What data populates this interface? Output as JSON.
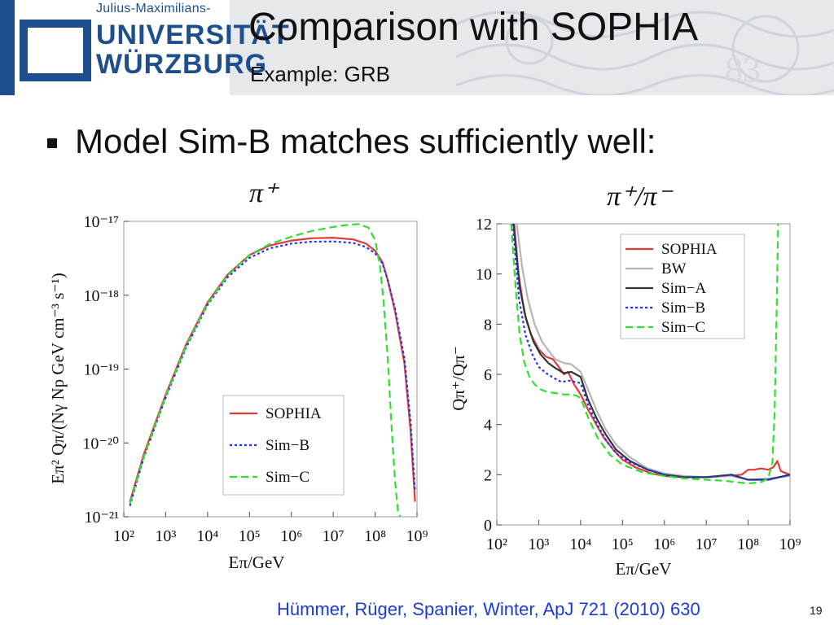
{
  "header": {
    "logo_small": "Julius-Maximilians-",
    "logo_line1": "UNIVERSITÄT",
    "logo_line2": "WÜRZBURG",
    "title": "Comparison with SOPHIA",
    "subtitle": "Example: GRB",
    "pattern_digits": "83"
  },
  "bullet": "Model Sim-B matches sufficiently well:",
  "citation": "Hümmer, Rüger, Spanier,  Winter,  ApJ 721 (2010) 630",
  "page_number": "19",
  "colors": {
    "sophia": "#e23a3a",
    "bw": "#b5b5b5",
    "simA": "#333333",
    "simB": "#2233ee",
    "simC": "#33dd33",
    "uni_blue": "#1e4f8c"
  },
  "chart_data": [
    {
      "type": "line",
      "label": "π⁺",
      "xlabel": "Eπ/GeV",
      "ylabel": "Eπ² Qπ/(Nγ Np GeV cm⁻³ s⁻¹)",
      "x_scale": "log",
      "y_scale": "log",
      "xlim": [
        100,
        1000000000
      ],
      "ylim": [
        1e-21,
        1e-17
      ],
      "x_ticks": [
        "10²",
        "10³",
        "10⁴",
        "10⁵",
        "10⁶",
        "10⁷",
        "10⁸",
        "10⁹"
      ],
      "y_ticks": [
        "10⁻¹⁷",
        "10⁻¹⁸",
        "10⁻¹⁹",
        "10⁻²⁰",
        "10⁻²¹"
      ],
      "legend_position": "bottom-right",
      "series": [
        {
          "name": "SOPHIA",
          "color": "#e23a3a",
          "dash": "solid",
          "x": [
            140,
            300,
            1000,
            3000,
            10000,
            30000,
            100000,
            300000,
            1000000,
            3000000,
            10000000,
            30000000,
            60000000,
            100000000,
            150000000,
            200000000,
            300000000,
            500000000,
            700000000,
            900000000
          ],
          "y": [
            1.6e-21,
            7e-21,
            4.5e-20,
            2.1e-19,
            8e-19,
            1.9e-18,
            3.5e-18,
            4.7e-18,
            5.5e-18,
            5.9e-18,
            6e-18,
            5.7e-18,
            5e-18,
            4e-18,
            2.8e-18,
            1.6e-18,
            6e-19,
            1.2e-19,
            1.5e-20,
            1.6e-21
          ]
        },
        {
          "name": "Sim−B",
          "color": "#2233ee",
          "dash": "dot",
          "x": [
            140,
            300,
            1000,
            3000,
            10000,
            30000,
            100000,
            300000,
            1000000,
            3000000,
            10000000,
            30000000,
            60000000,
            100000000,
            150000000,
            200000000,
            300000000,
            500000000,
            700000000,
            900000000
          ],
          "y": [
            1.4e-21,
            6.3e-21,
            4.1e-20,
            1.9e-19,
            7.4e-19,
            1.75e-18,
            3.2e-18,
            4.3e-18,
            5e-18,
            5.3e-18,
            5.35e-18,
            5.1e-18,
            4.5e-18,
            3.7e-18,
            2.7e-18,
            1.6e-18,
            6.5e-19,
            1.4e-19,
            2e-20,
            2.2e-21
          ]
        },
        {
          "name": "Sim−C",
          "color": "#33dd33",
          "dash": "dash",
          "x": [
            140,
            300,
            1000,
            3000,
            10000,
            30000,
            100000,
            300000,
            1000000,
            3000000,
            10000000,
            20000000,
            40000000,
            70000000,
            100000000,
            130000000,
            160000000,
            200000000,
            250000000,
            300000000,
            350000000,
            400000000
          ],
          "y": [
            1.5e-21,
            6.5e-21,
            4.3e-20,
            2e-19,
            7.7e-19,
            1.85e-18,
            3.5e-18,
            4.9e-18,
            6.2e-18,
            7.4e-18,
            8.4e-18,
            8.9e-18,
            9.2e-18,
            8.2e-18,
            5.6e-18,
            2.6e-18,
            8e-19,
            1.4e-19,
            1.5e-20,
            3e-21,
            1.2e-21,
            9e-22
          ]
        }
      ]
    },
    {
      "type": "line",
      "label": "π⁺/π⁻",
      "xlabel": "Eπ/GeV",
      "ylabel": "Qπ⁺/Qπ⁻",
      "x_scale": "log",
      "y_scale": "linear",
      "xlim": [
        100,
        1000000000
      ],
      "ylim": [
        0,
        12
      ],
      "x_ticks": [
        "10²",
        "10³",
        "10⁴",
        "10⁵",
        "10⁶",
        "10⁷",
        "10⁸",
        "10⁹"
      ],
      "y_ticks": [
        "0",
        "2",
        "4",
        "6",
        "8",
        "10",
        "12"
      ],
      "legend_position": "top-right",
      "series": [
        {
          "name": "SOPHIA",
          "color": "#e23a3a",
          "dash": "solid",
          "x": [
            260,
            330,
            450,
            650,
            1000,
            1500,
            2200,
            3000,
            4000,
            5000,
            7000,
            10000,
            15000,
            22000,
            35000,
            60000,
            100000,
            200000,
            500000,
            1000000,
            3000000,
            10000000,
            30000000,
            70000000,
            100000000,
            140000000,
            200000000,
            300000000,
            400000000,
            500000000,
            600000000,
            700000000,
            1000000000
          ],
          "y": [
            12,
            10,
            8.5,
            7.6,
            7,
            6.7,
            6.6,
            6.3,
            6,
            6.1,
            5.6,
            5.2,
            4.6,
            4.1,
            3.5,
            3,
            2.6,
            2.3,
            2.05,
            1.95,
            1.9,
            1.9,
            1.95,
            2,
            2.2,
            2.2,
            2.25,
            2.2,
            2.3,
            2.55,
            2.15,
            2.1,
            2
          ]
        },
        {
          "name": "BW",
          "color": "#b5b5b5",
          "dash": "solid",
          "x": [
            300,
            400,
            550,
            800,
            1200,
            1800,
            2500,
            4000,
            6000,
            10000,
            15000,
            25000,
            40000,
            70000,
            150000,
            400000,
            1000000,
            3000000,
            10000000,
            40000000,
            100000000,
            300000000,
            1000000000
          ],
          "y": [
            12,
            10.3,
            9,
            8,
            7.3,
            6.9,
            6.6,
            6.45,
            6.4,
            6.1,
            5.4,
            4.5,
            3.8,
            3.2,
            2.7,
            2.25,
            2.05,
            1.95,
            1.9,
            1.95,
            1.8,
            1.85,
            1.95
          ]
        },
        {
          "name": "Sim−A",
          "color": "#333333",
          "dash": "solid",
          "x": [
            250,
            350,
            500,
            750,
            1100,
            1700,
            2500,
            4000,
            6000,
            10000,
            15000,
            25000,
            40000,
            70000,
            150000,
            400000,
            1000000,
            3000000,
            10000000,
            40000000,
            100000000,
            300000000,
            1000000000
          ],
          "y": [
            12,
            9.5,
            8.2,
            7.3,
            6.8,
            6.45,
            6.25,
            6.05,
            6.1,
            5.9,
            5,
            4.2,
            3.6,
            3,
            2.55,
            2.2,
            2,
            1.9,
            1.9,
            2,
            1.8,
            1.8,
            2
          ]
        },
        {
          "name": "Sim−B",
          "color": "#2233ee",
          "dash": "dot",
          "x": [
            240,
            340,
            480,
            700,
            1000,
            1500,
            2300,
            3500,
            5500,
            10000,
            15000,
            25000,
            40000,
            70000,
            150000,
            400000,
            1000000,
            3000000,
            10000000,
            40000000,
            100000000,
            300000000,
            1000000000
          ],
          "y": [
            12,
            9,
            7.6,
            6.8,
            6.3,
            6.05,
            5.85,
            5.7,
            5.75,
            5.65,
            4.8,
            4,
            3.4,
            2.85,
            2.5,
            2.2,
            2,
            1.9,
            1.9,
            2,
            1.8,
            1.8,
            2
          ]
        },
        {
          "name": "Sim−C",
          "color": "#33dd33",
          "dash": "dash",
          "x": [
            220,
            280,
            350,
            450,
            600,
            800,
            1100,
            1600,
            2500,
            4000,
            6000,
            8000,
            10000,
            15000,
            25000,
            50000,
            100000,
            300000,
            1000000,
            3000000,
            10000000,
            30000000,
            100000000,
            200000000,
            300000000,
            380000000,
            430000000,
            480000000,
            520000000
          ],
          "y": [
            12,
            9.5,
            7.6,
            6.5,
            5.9,
            5.6,
            5.4,
            5.3,
            5.25,
            5.2,
            5.2,
            5.15,
            5.05,
            4.3,
            3.5,
            2.8,
            2.4,
            2.1,
            1.95,
            1.85,
            1.8,
            1.75,
            1.65,
            1.7,
            1.85,
            2.5,
            4.5,
            8.5,
            12
          ]
        }
      ]
    }
  ]
}
